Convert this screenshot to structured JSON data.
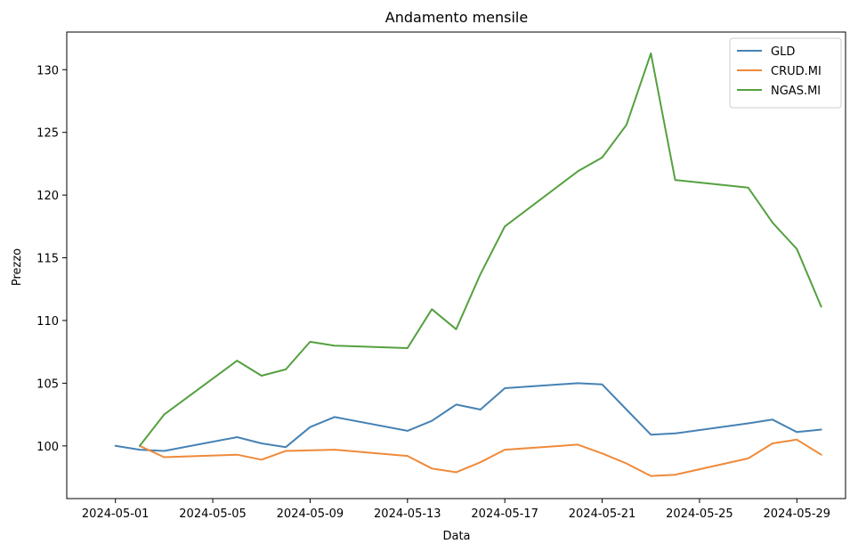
{
  "chart_data": {
    "type": "line",
    "title": "Andamento mensile",
    "xlabel": "Data",
    "ylabel": "Prezzo",
    "xlim": [
      "2024-04-29",
      "2024-05-31"
    ],
    "ylim": [
      95.8,
      133.0
    ],
    "x_ticks": [
      "2024-05-01",
      "2024-05-05",
      "2024-05-09",
      "2024-05-13",
      "2024-05-17",
      "2024-05-21",
      "2024-05-25",
      "2024-05-29"
    ],
    "y_ticks": [
      100,
      105,
      110,
      115,
      120,
      125,
      130
    ],
    "grid": false,
    "legend_position": "top-right",
    "series": [
      {
        "name": "GLD",
        "color": "#4682b4",
        "points": [
          [
            "2024-05-01",
            100.0
          ],
          [
            "2024-05-02",
            99.7
          ],
          [
            "2024-05-03",
            99.6
          ],
          [
            "2024-05-06",
            100.7
          ],
          [
            "2024-05-07",
            100.2
          ],
          [
            "2024-05-08",
            99.9
          ],
          [
            "2024-05-09",
            101.5
          ],
          [
            "2024-05-10",
            102.3
          ],
          [
            "2024-05-13",
            101.2
          ],
          [
            "2024-05-14",
            102.0
          ],
          [
            "2024-05-15",
            103.3
          ],
          [
            "2024-05-16",
            102.9
          ],
          [
            "2024-05-17",
            104.6
          ],
          [
            "2024-05-20",
            105.0
          ],
          [
            "2024-05-21",
            104.9
          ],
          [
            "2024-05-22",
            102.9
          ],
          [
            "2024-05-23",
            100.9
          ],
          [
            "2024-05-24",
            101.0
          ],
          [
            "2024-05-27",
            101.8
          ],
          [
            "2024-05-28",
            102.1
          ],
          [
            "2024-05-29",
            101.1
          ],
          [
            "2024-05-30",
            101.3
          ]
        ]
      },
      {
        "name": "CRUD.MI",
        "color": "#ef8a3a",
        "points": [
          [
            "2024-05-02",
            100.0
          ],
          [
            "2024-05-03",
            99.1
          ],
          [
            "2024-05-06",
            99.3
          ],
          [
            "2024-05-07",
            98.9
          ],
          [
            "2024-05-08",
            99.6
          ],
          [
            "2024-05-10",
            99.7
          ],
          [
            "2024-05-13",
            99.2
          ],
          [
            "2024-05-14",
            98.2
          ],
          [
            "2024-05-15",
            97.9
          ],
          [
            "2024-05-16",
            98.7
          ],
          [
            "2024-05-17",
            99.7
          ],
          [
            "2024-05-20",
            100.1
          ],
          [
            "2024-05-21",
            99.4
          ],
          [
            "2024-05-22",
            98.6
          ],
          [
            "2024-05-23",
            97.6
          ],
          [
            "2024-05-24",
            97.7
          ],
          [
            "2024-05-27",
            99.0
          ],
          [
            "2024-05-28",
            100.2
          ],
          [
            "2024-05-29",
            100.5
          ],
          [
            "2024-05-30",
            99.3
          ]
        ]
      },
      {
        "name": "NGAS.MI",
        "color": "#55a040",
        "points": [
          [
            "2024-05-02",
            100.0
          ],
          [
            "2024-05-03",
            102.5
          ],
          [
            "2024-05-06",
            106.8
          ],
          [
            "2024-05-07",
            105.6
          ],
          [
            "2024-05-08",
            106.1
          ],
          [
            "2024-05-09",
            108.3
          ],
          [
            "2024-05-10",
            108.0
          ],
          [
            "2024-05-13",
            107.8
          ],
          [
            "2024-05-14",
            110.9
          ],
          [
            "2024-05-15",
            109.3
          ],
          [
            "2024-05-16",
            113.7
          ],
          [
            "2024-05-17",
            117.5
          ],
          [
            "2024-05-20",
            121.9
          ],
          [
            "2024-05-21",
            123.0
          ],
          [
            "2024-05-22",
            125.6
          ],
          [
            "2024-05-23",
            131.3
          ],
          [
            "2024-05-24",
            121.2
          ],
          [
            "2024-05-27",
            120.6
          ],
          [
            "2024-05-28",
            117.8
          ],
          [
            "2024-05-29",
            115.7
          ],
          [
            "2024-05-30",
            111.1
          ]
        ]
      }
    ]
  }
}
